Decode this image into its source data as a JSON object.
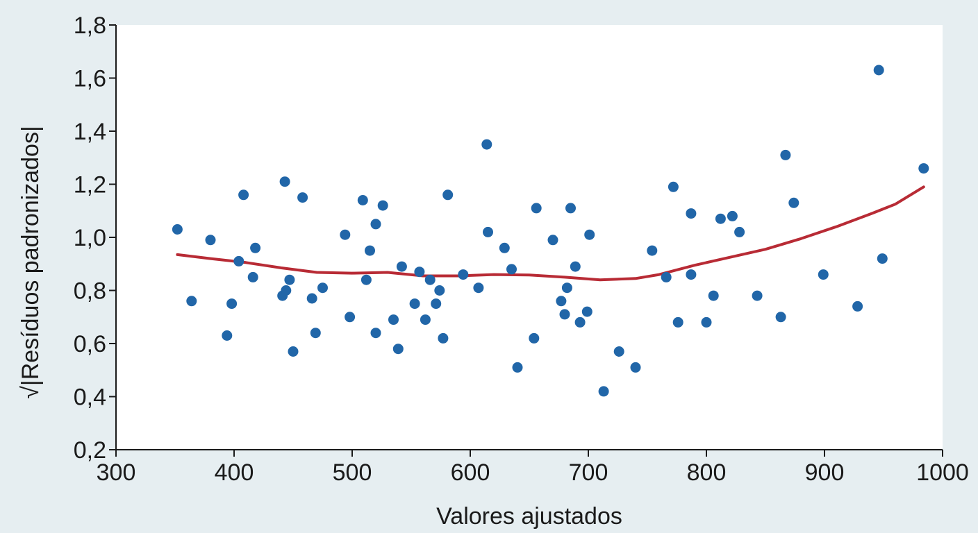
{
  "chart_data": {
    "type": "scatter",
    "xlabel": "Valores ajustados",
    "ylabel": "√|Resíduos padronizados|",
    "xlim": [
      300,
      1000
    ],
    "ylim": [
      0.2,
      1.8
    ],
    "x_ticks": [
      300,
      400,
      500,
      600,
      700,
      800,
      900,
      1000
    ],
    "x_tick_labels": [
      "300",
      "400",
      "500",
      "600",
      "700",
      "800",
      "900",
      "1000"
    ],
    "y_ticks": [
      0.2,
      0.4,
      0.6,
      0.8,
      1.0,
      1.2,
      1.4,
      1.6,
      1.8
    ],
    "y_tick_labels": [
      "0,2",
      "0,4",
      "0,6",
      "0,8",
      "1,0",
      "1,2",
      "1,4",
      "1,6",
      "1,8"
    ],
    "grid": false,
    "colors": {
      "points": "#2166a8",
      "trend": "#b82b35",
      "plot_background": "#ffffff",
      "page_background": "#e6eef1"
    },
    "points": [
      {
        "x": 352,
        "y": 1.03
      },
      {
        "x": 364,
        "y": 0.76
      },
      {
        "x": 380,
        "y": 0.99
      },
      {
        "x": 394,
        "y": 0.63
      },
      {
        "x": 398,
        "y": 0.75
      },
      {
        "x": 404,
        "y": 0.91
      },
      {
        "x": 408,
        "y": 1.16
      },
      {
        "x": 416,
        "y": 0.85
      },
      {
        "x": 418,
        "y": 0.96
      },
      {
        "x": 441,
        "y": 0.78
      },
      {
        "x": 443,
        "y": 1.21
      },
      {
        "x": 444,
        "y": 0.8
      },
      {
        "x": 447,
        "y": 0.84
      },
      {
        "x": 450,
        "y": 0.57
      },
      {
        "x": 458,
        "y": 1.15
      },
      {
        "x": 466,
        "y": 0.77
      },
      {
        "x": 469,
        "y": 0.64
      },
      {
        "x": 475,
        "y": 0.81
      },
      {
        "x": 494,
        "y": 1.01
      },
      {
        "x": 498,
        "y": 0.7
      },
      {
        "x": 509,
        "y": 1.14
      },
      {
        "x": 512,
        "y": 0.84
      },
      {
        "x": 515,
        "y": 0.95
      },
      {
        "x": 520,
        "y": 1.05
      },
      {
        "x": 520,
        "y": 0.64
      },
      {
        "x": 526,
        "y": 1.12
      },
      {
        "x": 535,
        "y": 0.69
      },
      {
        "x": 539,
        "y": 0.58
      },
      {
        "x": 542,
        "y": 0.89
      },
      {
        "x": 553,
        "y": 0.75
      },
      {
        "x": 557,
        "y": 0.87
      },
      {
        "x": 562,
        "y": 0.69
      },
      {
        "x": 566,
        "y": 0.84
      },
      {
        "x": 571,
        "y": 0.75
      },
      {
        "x": 574,
        "y": 0.8
      },
      {
        "x": 577,
        "y": 0.62
      },
      {
        "x": 581,
        "y": 1.16
      },
      {
        "x": 594,
        "y": 0.86
      },
      {
        "x": 607,
        "y": 0.81
      },
      {
        "x": 614,
        "y": 1.35
      },
      {
        "x": 615,
        "y": 1.02
      },
      {
        "x": 629,
        "y": 0.96
      },
      {
        "x": 635,
        "y": 0.88
      },
      {
        "x": 640,
        "y": 0.51
      },
      {
        "x": 654,
        "y": 0.62
      },
      {
        "x": 656,
        "y": 1.11
      },
      {
        "x": 670,
        "y": 0.99
      },
      {
        "x": 677,
        "y": 0.76
      },
      {
        "x": 680,
        "y": 0.71
      },
      {
        "x": 682,
        "y": 0.81
      },
      {
        "x": 685,
        "y": 1.11
      },
      {
        "x": 689,
        "y": 0.89
      },
      {
        "x": 693,
        "y": 0.68
      },
      {
        "x": 699,
        "y": 0.72
      },
      {
        "x": 701,
        "y": 1.01
      },
      {
        "x": 713,
        "y": 0.42
      },
      {
        "x": 726,
        "y": 0.57
      },
      {
        "x": 740,
        "y": 0.51
      },
      {
        "x": 754,
        "y": 0.95
      },
      {
        "x": 766,
        "y": 0.85
      },
      {
        "x": 772,
        "y": 1.19
      },
      {
        "x": 776,
        "y": 0.68
      },
      {
        "x": 787,
        "y": 0.86
      },
      {
        "x": 787,
        "y": 1.09
      },
      {
        "x": 800,
        "y": 0.68
      },
      {
        "x": 806,
        "y": 0.78
      },
      {
        "x": 812,
        "y": 1.07
      },
      {
        "x": 822,
        "y": 1.08
      },
      {
        "x": 828,
        "y": 1.02
      },
      {
        "x": 843,
        "y": 0.78
      },
      {
        "x": 863,
        "y": 0.7
      },
      {
        "x": 867,
        "y": 1.31
      },
      {
        "x": 874,
        "y": 1.13
      },
      {
        "x": 899,
        "y": 0.86
      },
      {
        "x": 928,
        "y": 0.74
      },
      {
        "x": 946,
        "y": 1.63
      },
      {
        "x": 949,
        "y": 0.92
      },
      {
        "x": 984,
        "y": 1.26
      }
    ],
    "trend_line": [
      {
        "x": 352,
        "y": 0.935
      },
      {
        "x": 380,
        "y": 0.92
      },
      {
        "x": 410,
        "y": 0.905
      },
      {
        "x": 440,
        "y": 0.885
      },
      {
        "x": 470,
        "y": 0.868
      },
      {
        "x": 500,
        "y": 0.865
      },
      {
        "x": 530,
        "y": 0.868
      },
      {
        "x": 560,
        "y": 0.855
      },
      {
        "x": 590,
        "y": 0.855
      },
      {
        "x": 620,
        "y": 0.86
      },
      {
        "x": 650,
        "y": 0.858
      },
      {
        "x": 680,
        "y": 0.85
      },
      {
        "x": 710,
        "y": 0.84
      },
      {
        "x": 740,
        "y": 0.845
      },
      {
        "x": 760,
        "y": 0.86
      },
      {
        "x": 790,
        "y": 0.895
      },
      {
        "x": 820,
        "y": 0.925
      },
      {
        "x": 850,
        "y": 0.955
      },
      {
        "x": 880,
        "y": 0.995
      },
      {
        "x": 910,
        "y": 1.04
      },
      {
        "x": 940,
        "y": 1.09
      },
      {
        "x": 960,
        "y": 1.125
      },
      {
        "x": 984,
        "y": 1.19
      }
    ]
  }
}
